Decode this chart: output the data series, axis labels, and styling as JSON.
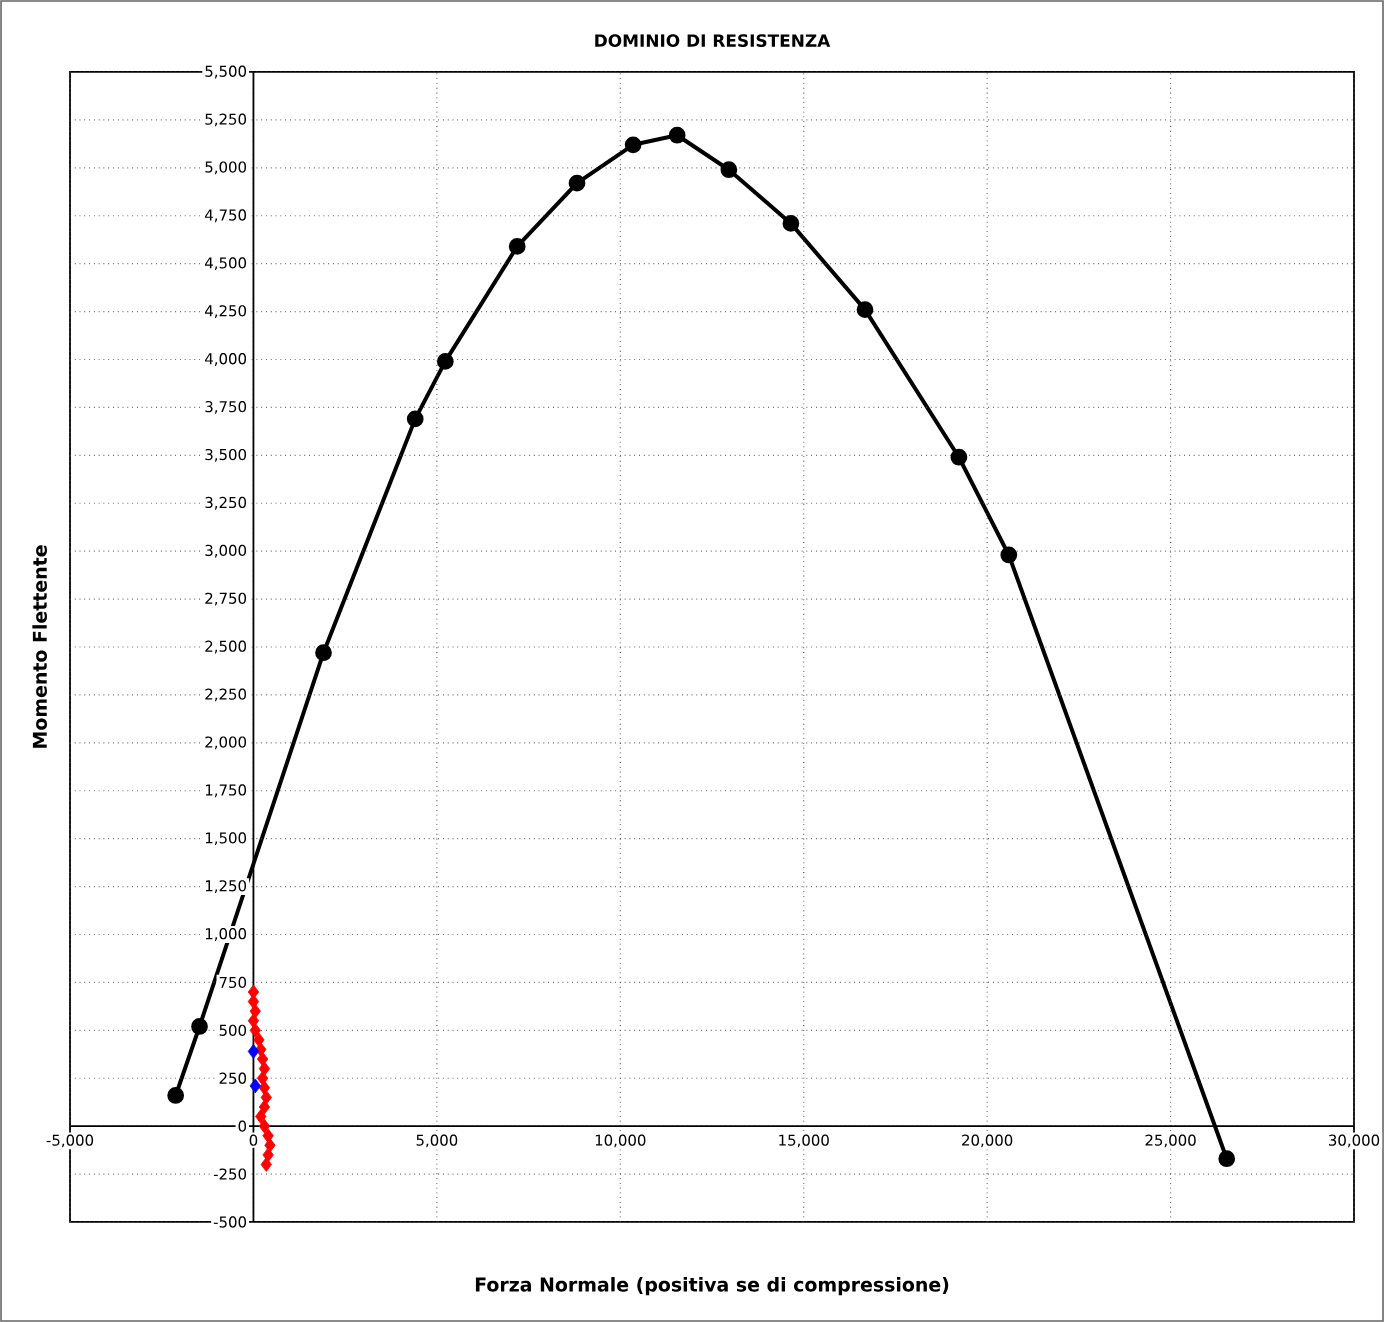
{
  "chart_data": {
    "type": "line",
    "title": "DOMINIO DI RESISTENZA",
    "xlabel": "Forza Normale (positiva se di compressione)",
    "ylabel": "Momento Flettente",
    "xlim": [
      -5000,
      30000
    ],
    "ylim": [
      -500,
      5500
    ],
    "xticks": [
      {
        "value": -5000,
        "label": "-5,000"
      },
      {
        "value": 0,
        "label": "0"
      },
      {
        "value": 5000,
        "label": "5,000"
      },
      {
        "value": 10000,
        "label": "10,000"
      },
      {
        "value": 15000,
        "label": "15,000"
      },
      {
        "value": 20000,
        "label": "20,000"
      },
      {
        "value": 25000,
        "label": "25,000"
      },
      {
        "value": 30000,
        "label": "30,000"
      }
    ],
    "yticks": [
      {
        "value": -500,
        "label": "-500"
      },
      {
        "value": -250,
        "label": "-250"
      },
      {
        "value": 0,
        "label": "0"
      },
      {
        "value": 250,
        "label": "250"
      },
      {
        "value": 500,
        "label": "500"
      },
      {
        "value": 750,
        "label": "750"
      },
      {
        "value": 1000,
        "label": "1,000"
      },
      {
        "value": 1250,
        "label": "1,250"
      },
      {
        "value": 1500,
        "label": "1,500"
      },
      {
        "value": 1750,
        "label": "1,750"
      },
      {
        "value": 2000,
        "label": "2,000"
      },
      {
        "value": 2250,
        "label": "2,250"
      },
      {
        "value": 2500,
        "label": "2,500"
      },
      {
        "value": 2750,
        "label": "2,750"
      },
      {
        "value": 3000,
        "label": "3,000"
      },
      {
        "value": 3250,
        "label": "3,250"
      },
      {
        "value": 3500,
        "label": "3,500"
      },
      {
        "value": 3750,
        "label": "3,750"
      },
      {
        "value": 4000,
        "label": "4,000"
      },
      {
        "value": 4250,
        "label": "4,250"
      },
      {
        "value": 4500,
        "label": "4,500"
      },
      {
        "value": 4750,
        "label": "4,750"
      },
      {
        "value": 5000,
        "label": "5,000"
      },
      {
        "value": 5250,
        "label": "5,250"
      },
      {
        "value": 5500,
        "label": "5,500"
      }
    ],
    "grid": true,
    "series": [
      {
        "type": "line",
        "color": "#000000",
        "marker": "circle",
        "line_style": "solid",
        "x": [
          -2120,
          -1470,
          1910,
          4410,
          5230,
          7190,
          8820,
          10350,
          11550,
          12960,
          14650,
          16670,
          19230,
          20590,
          26530
        ],
        "values": [
          160,
          520,
          2470,
          3690,
          3990,
          4590,
          4920,
          5120,
          5170,
          4990,
          4710,
          4260,
          3490,
          2980,
          -170
        ]
      },
      {
        "type": "scatter",
        "color": "#ff0000",
        "marker": "diamond",
        "x": [
          0,
          0,
          50,
          0,
          50,
          150,
          200,
          250,
          300,
          250,
          300,
          350,
          300,
          200,
          300,
          400,
          450,
          400,
          350
        ],
        "values": [
          700,
          650,
          600,
          550,
          500,
          450,
          400,
          350,
          300,
          250,
          200,
          150,
          100,
          50,
          0,
          -50,
          -100,
          -150,
          -200
        ]
      },
      {
        "type": "scatter",
        "color": "#0000ff",
        "marker": "diamond",
        "x": [
          0,
          50
        ],
        "values": [
          390,
          210
        ]
      }
    ]
  }
}
